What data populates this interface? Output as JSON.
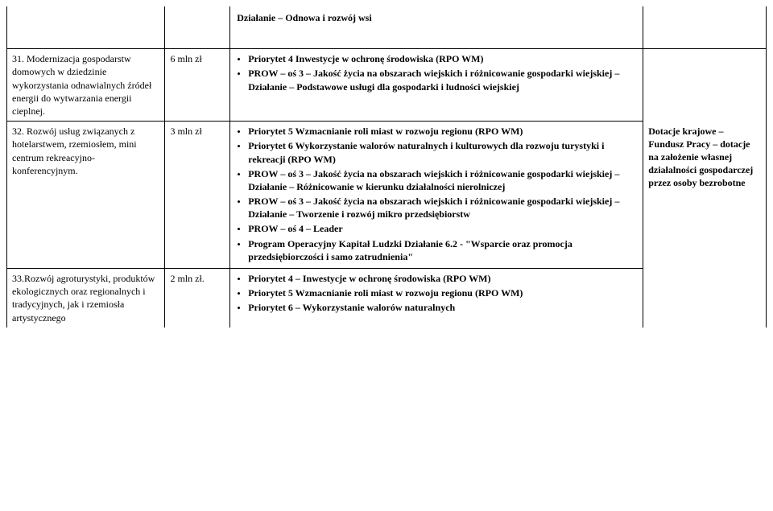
{
  "header": {
    "title": "Działanie – Odnowa i rozwój wsi"
  },
  "rows": [
    {
      "col1": "31. Modernizacja gospodarstw domowych w dziedzinie wykorzystania odnawialnych źródeł energii do wytwarzania energii cieplnej.",
      "col2": "6 mln zł",
      "bullets": [
        "Priorytet 4 Inwestycje w ochronę środowiska (RPO WM)",
        "PROW – oś 3 – Jakość życia na obszarach wiejskich i różnicowanie gospodarki wiejskiej – Działanie – Podstawowe usługi dla gospodarki i ludności wiejskiej"
      ]
    },
    {
      "col1": "32. Rozwój usług związanych z hotelarstwem, rzemiosłem, mini centrum rekreacyjno-konferencyjnym.",
      "col2": "3 mln zł",
      "bullets": [
        "Priorytet 5 Wzmacnianie roli miast w rozwoju regionu (RPO WM)",
        "Priorytet 6 Wykorzystanie walorów naturalnych i kulturowych dla rozwoju turystyki i rekreacji (RPO WM)",
        "PROW – oś 3 – Jakość życia na obszarach wiejskich i różnicowanie gospodarki wiejskiej – Działanie – Różnicowanie w kierunku działalności nierolniczej",
        "PROW – oś 3 – Jakość życia na obszarach wiejskich i różnicowanie gospodarki wiejskiej – Działanie – Tworzenie i rozwój mikro przedsiębiorstw",
        "PROW – oś 4 – Leader",
        "Program Operacyjny Kapitał Ludzki Działanie 6.2 - \"Wsparcie oraz promocja przedsiębiorczości i samo zatrudnienia\""
      ],
      "col4": "Dotacje krajowe – Fundusz Pracy – dotacje na założenie własnej działalności gospodarczej przez osoby bezrobotne"
    },
    {
      "col1": "33.Rozwój agroturystyki, produktów ekologicznych oraz regionalnych i tradycyjnych, jak i rzemiosła artystycznego",
      "col2": "2 mln zł.",
      "bullets": [
        "Priorytet 4 – Inwestycje w ochronę środowiska (RPO WM)",
        "Priorytet 5 Wzmacnianie roli miast w rozwoju regionu (RPO WM)",
        "Priorytet 6 – Wykorzystanie walorów naturalnych"
      ]
    }
  ],
  "bullet_bold_map": {
    "0": [
      [
        "Priorytet 4 Inwestycje w ochronę środowiska (RPO WM)"
      ],
      [
        "PROW – oś 3 – Jakość życia na obszarach wiejskich i różnicowanie gospodarki wiejskiej – Działanie – Podstawowe usługi dla gospodarki i ludności wiejskiej"
      ]
    ],
    "1": [
      [
        "Priorytet 5 Wzmacnianie roli miast w rozwoju regionu (RPO WM)"
      ],
      [
        "Priorytet 6 Wykorzystanie walorów naturalnych i kulturowych dla rozwoju turystyki i rekreacji (RPO WM)"
      ],
      [
        "PROW – oś 3 – Jakość życia na obszarach wiejskich i różnicowanie gospodarki wiejskiej – Działanie – Różnicowanie w kierunku działalności nierolniczej"
      ],
      [
        "PROW – oś 3 – Jakość życia na obszarach wiejskich i różnicowanie gospodarki wiejskiej – Działanie – Tworzenie i rozwój mikro przedsiębiorstw"
      ],
      [
        "PROW – oś 4 – Leader"
      ],
      [
        "Program Operacyjny Kapitał Ludzki Działanie 6.",
        "2 - \"Wsparcie oraz promocja przedsiębiorczości i samo zatrudnienia\""
      ]
    ],
    "2": [
      [
        "Priorytet 4 – Inwestycje w ochronę środowiska (RPO WM)"
      ],
      [
        "Priorytet 5 Wzmacnianie roli miast w rozwoju regionu (RPO WM)"
      ],
      [
        "Priorytet 6 – Wykorzystanie walorów naturalnych"
      ]
    ]
  }
}
